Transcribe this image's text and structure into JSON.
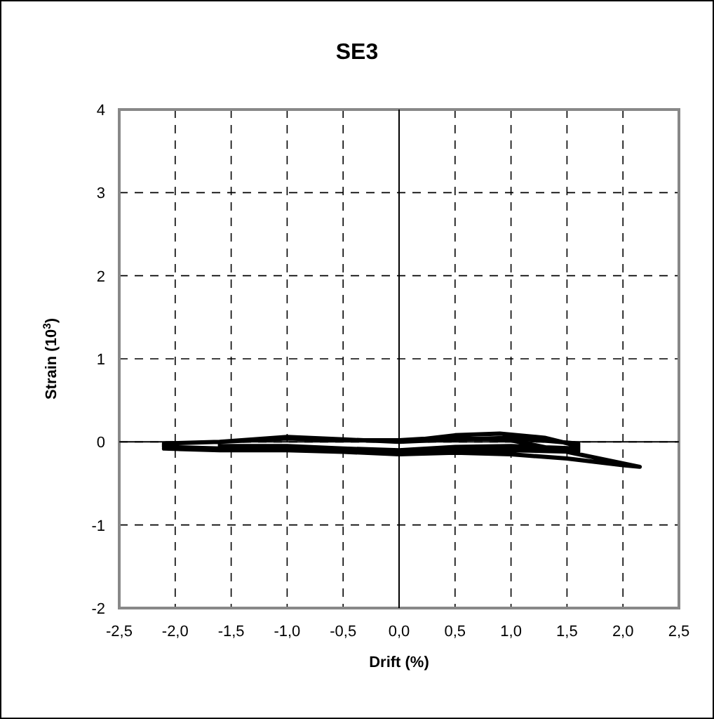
{
  "chart_data": {
    "type": "line",
    "title": "SE3",
    "xlabel": "Drift (%)",
    "ylabel": "Strain (10$^{3}$)",
    "xlim": [
      -2.5,
      2.5
    ],
    "xticks": [
      {
        "value": -2.5,
        "label": "-2,5"
      },
      {
        "value": -2,
        "label": "-2,0"
      },
      {
        "value": -1.5,
        "label": "-1,5"
      },
      {
        "value": -1,
        "label": "-1,0"
      },
      {
        "value": -0.5,
        "label": "-0,5"
      },
      {
        "value": 0,
        "label": "0,0"
      },
      {
        "value": 0.5,
        "label": "0,5"
      },
      {
        "value": 1,
        "label": "1,0"
      },
      {
        "value": 1.5,
        "label": "1,5"
      },
      {
        "value": 2,
        "label": "2,0"
      },
      {
        "value": 2.5,
        "label": "2,5"
      }
    ],
    "ylim": [
      -2,
      4
    ],
    "yticks": [
      -2,
      -1,
      0,
      1,
      2,
      3,
      4
    ],
    "grid": true,
    "marker": "none",
    "line_style": "solid",
    "series": [
      {
        "color": "#000000",
        "x": [
          0,
          0.5,
          1.0,
          1.6,
          1.6,
          1.0,
          0.5,
          0,
          -0.5,
          -1.0,
          -1.6,
          -1.6,
          -1.0,
          -0.5,
          0,
          0.5,
          0.9,
          1.3,
          1.6,
          1.6,
          1.0,
          0.5,
          0,
          -0.5,
          -1.0,
          -1.6,
          -2.1,
          -2.1,
          -1.6,
          -1.0,
          -0.5,
          0,
          0.5,
          1.0,
          1.5,
          2.15,
          2.0,
          1.5,
          1.0,
          0.5,
          0,
          -0.5,
          -1.0,
          -1.6,
          -2.1
        ],
        "values": [
          0,
          0.03,
          0.05,
          -0.02,
          -0.08,
          -0.05,
          -0.06,
          -0.1,
          -0.08,
          -0.05,
          -0.05,
          0,
          0.06,
          0.03,
          0,
          0.08,
          0.1,
          0.05,
          -0.05,
          -0.12,
          -0.1,
          -0.1,
          -0.13,
          -0.1,
          -0.08,
          -0.08,
          -0.06,
          -0.02,
          0,
          0.04,
          0.02,
          0.02,
          0.06,
          0.02,
          -0.12,
          -0.3,
          -0.28,
          -0.2,
          -0.15,
          -0.13,
          -0.15,
          -0.12,
          -0.1,
          -0.1,
          -0.08
        ]
      }
    ]
  }
}
